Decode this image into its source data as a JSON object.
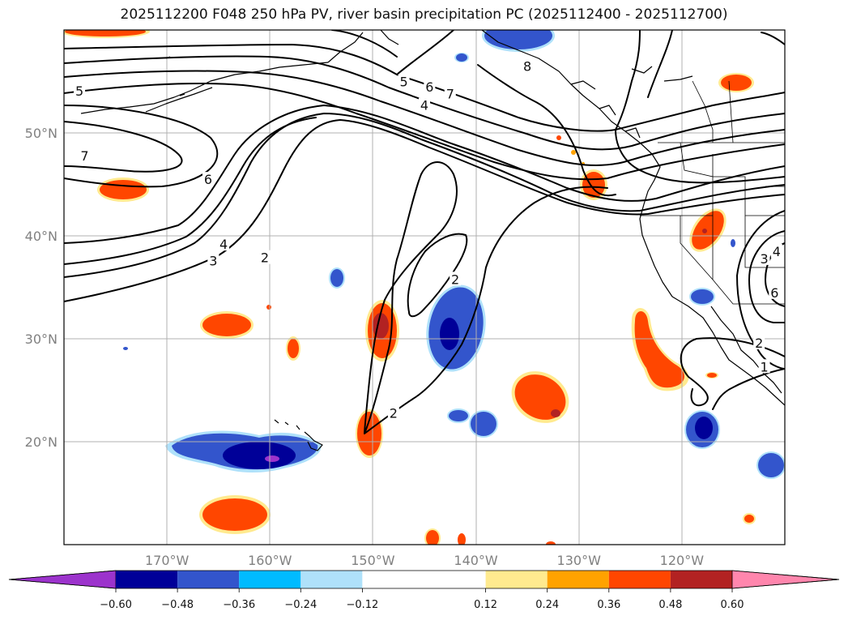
{
  "title": "2025112200 F048 250 hPa PV, river basin precipitation PC (2025112400 - 2025112700)",
  "map": {
    "lon_range": [
      -180,
      -110
    ],
    "lat_range": [
      10,
      60
    ],
    "lon_ticks": [
      {
        "value": -170,
        "label": "170°W"
      },
      {
        "value": -160,
        "label": "160°W"
      },
      {
        "value": -150,
        "label": "150°W"
      },
      {
        "value": -140,
        "label": "140°W"
      },
      {
        "value": -130,
        "label": "130°W"
      },
      {
        "value": -120,
        "label": "120°W"
      }
    ],
    "lat_ticks": [
      {
        "value": 20,
        "label": "20°N"
      },
      {
        "value": 30,
        "label": "30°N"
      },
      {
        "value": 40,
        "label": "40°N"
      },
      {
        "value": 50,
        "label": "50°N"
      }
    ],
    "grid": true,
    "coastlines": true,
    "fill_field": "river basin precipitation PC",
    "contour_field": "250 hPa PV"
  },
  "contour_labels": [
    {
      "text": "5",
      "lon": -178.5,
      "lat": 54.1
    },
    {
      "text": "7",
      "lon": -178.0,
      "lat": 47.8
    },
    {
      "text": "6",
      "lon": -166.0,
      "lat": 45.5
    },
    {
      "text": "4",
      "lon": -164.5,
      "lat": 39.2
    },
    {
      "text": "3",
      "lon": -165.5,
      "lat": 37.6
    },
    {
      "text": "2",
      "lon": -160.5,
      "lat": 37.9
    },
    {
      "text": "5",
      "lon": -147.0,
      "lat": 55.0
    },
    {
      "text": "6",
      "lon": -144.5,
      "lat": 54.5
    },
    {
      "text": "4",
      "lon": -145.0,
      "lat": 52.7
    },
    {
      "text": "7",
      "lon": -142.5,
      "lat": 53.8
    },
    {
      "text": "8",
      "lon": -135.0,
      "lat": 56.5
    },
    {
      "text": "2",
      "lon": -142.0,
      "lat": 35.8
    },
    {
      "text": "2",
      "lon": -148.0,
      "lat": 22.8
    },
    {
      "text": "4",
      "lon": -110.8,
      "lat": 38.5
    },
    {
      "text": "3",
      "lon": -112.0,
      "lat": 37.8
    },
    {
      "text": "6",
      "lon": -111.0,
      "lat": 34.5
    },
    {
      "text": "2",
      "lon": -112.5,
      "lat": 29.6
    },
    {
      "text": "1",
      "lon": -112.0,
      "lat": 27.3
    }
  ],
  "colorbar": {
    "colors": [
      "#9c33cc",
      "#000098",
      "#3355cc",
      "#00bbff",
      "#afe1fa",
      "#ffffff",
      "#ffea8f",
      "#ffa200",
      "#ff4600",
      "#b22222",
      "#ff86ad"
    ],
    "boundaries": [
      -0.6,
      -0.48,
      -0.36,
      -0.24,
      -0.12,
      0.12,
      0.24,
      0.36,
      0.48,
      0.6
    ],
    "tick_labels": [
      "−0.60",
      "−0.48",
      "−0.36",
      "−0.24",
      "−0.12",
      "0.12",
      "0.24",
      "0.36",
      "0.48",
      "0.60"
    ],
    "extend": "both"
  },
  "colors": {
    "contour": "#000000",
    "grid": "#b0b0b0",
    "tick_label": "#808080"
  }
}
